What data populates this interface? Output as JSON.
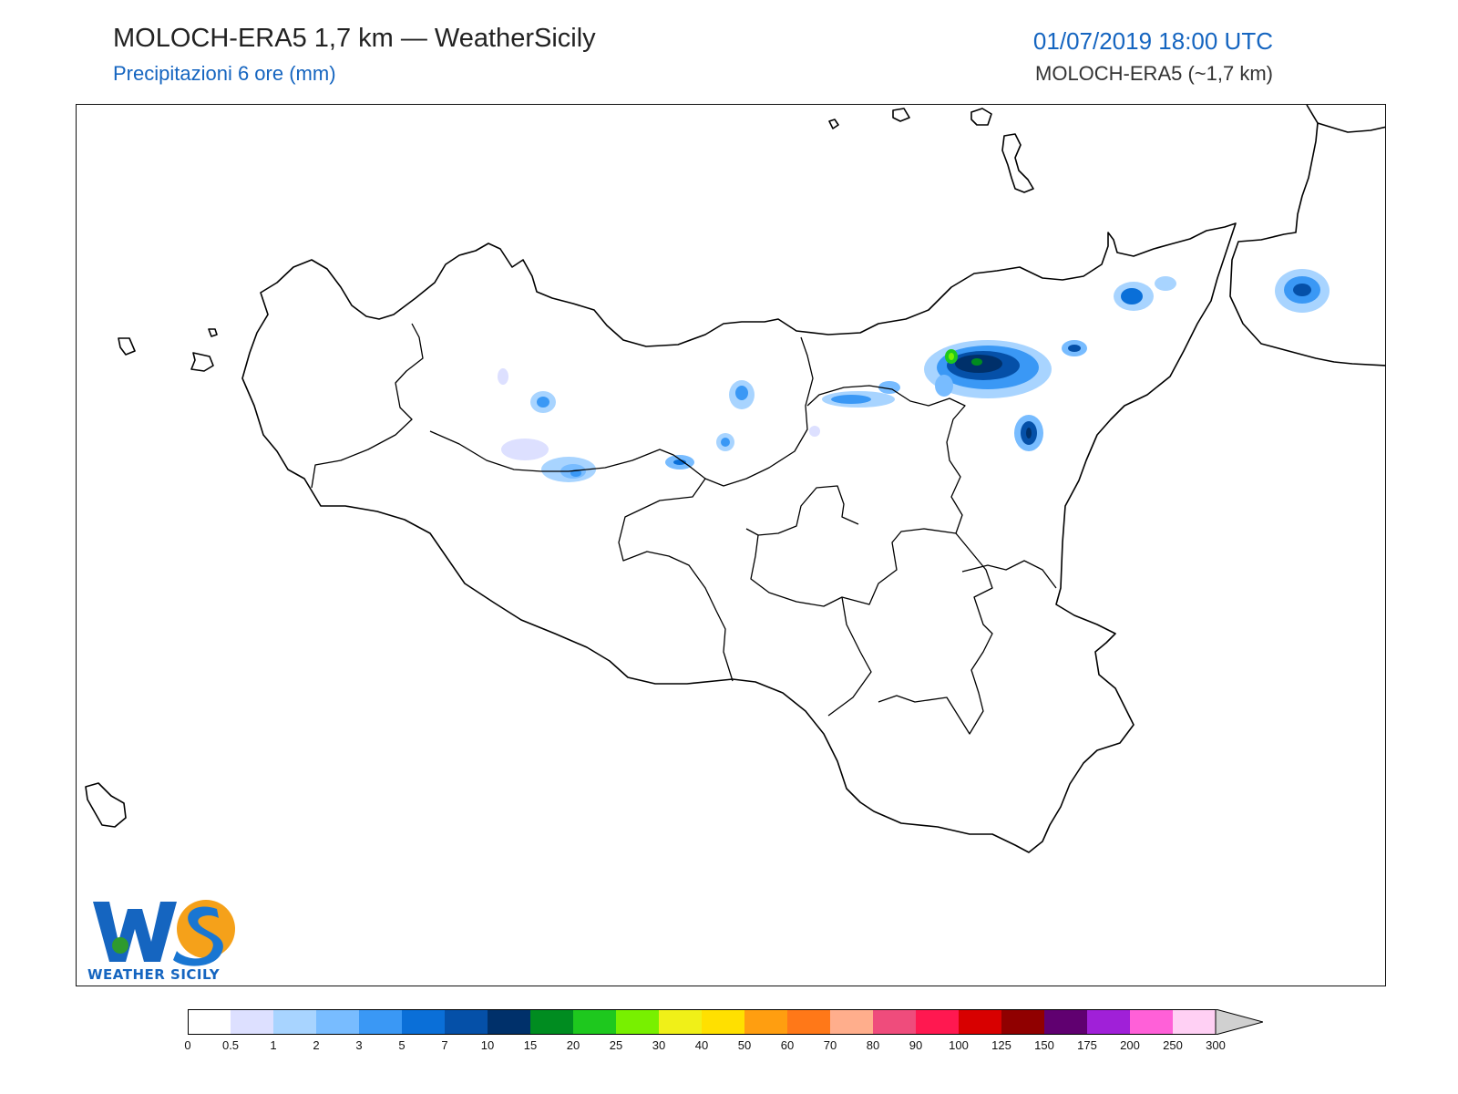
{
  "header": {
    "title": "MOLOCH-ERA5 1,7 km — WeatherSicily",
    "subtitle": "Precipitazioni 6 ore (mm)",
    "datetime": "01/07/2019 18:00 UTC",
    "model": "MOLOCH-ERA5 (~1,7 km)"
  },
  "logo": {
    "text": "WEATHER SICILY",
    "mark": "WS"
  },
  "legend": {
    "levels": [
      "0",
      "0.5",
      "1",
      "2",
      "3",
      "5",
      "7",
      "10",
      "15",
      "20",
      "25",
      "30",
      "40",
      "50",
      "60",
      "70",
      "80",
      "90",
      "100",
      "125",
      "150",
      "175",
      "200",
      "250",
      "300"
    ],
    "colors": [
      "#ffffff",
      "#dde0ff",
      "#a8d4ff",
      "#78bcff",
      "#3a98f5",
      "#0a6fd8",
      "#0550a8",
      "#00306a",
      "#008c20",
      "#1ec81e",
      "#78f000",
      "#f0f018",
      "#ffe000",
      "#ff9e10",
      "#ff7818",
      "#ffae8c",
      "#ef4c7c",
      "#ff1850",
      "#d80000",
      "#900000",
      "#600070",
      "#a020d8",
      "#ff60d8",
      "#ffd0f4"
    ],
    "extend_color": "#d0d0d0"
  },
  "precip_cells": [
    {
      "name": "etna-north",
      "level": "15"
    },
    {
      "name": "nebrodi-east",
      "level": "7"
    },
    {
      "name": "calabria",
      "level": "7"
    },
    {
      "name": "madonie",
      "level": "3"
    }
  ]
}
